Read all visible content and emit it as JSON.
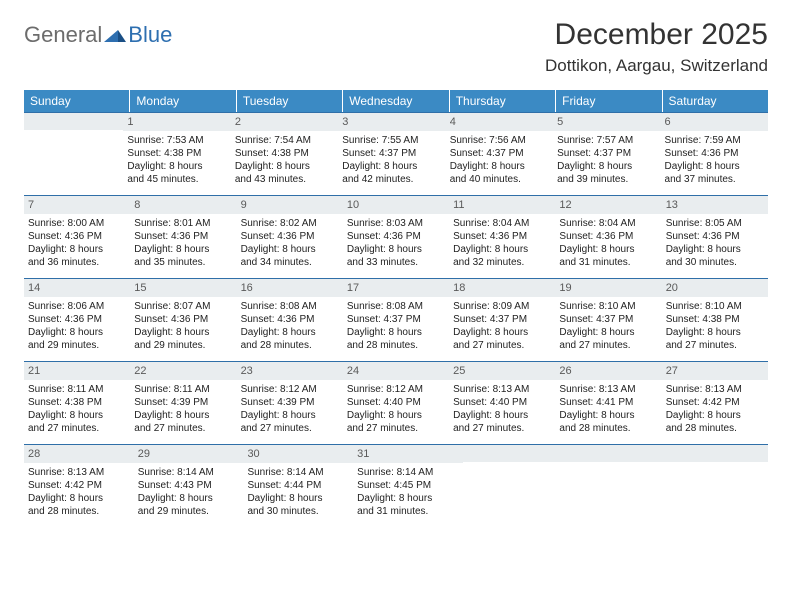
{
  "logo": {
    "text1": "General",
    "text2": "Blue"
  },
  "title": "December 2025",
  "location": "Dottikon, Aargau, Switzerland",
  "colors": {
    "header_bg": "#3b8ac4",
    "header_fg": "#ffffff",
    "daynum_bg": "#e9edef",
    "daynum_fg": "#5a5a5a",
    "rule": "#2f6fa8",
    "title_fg": "#333333",
    "body_fg": "#222222",
    "logo_gray": "#6c6c6c",
    "logo_blue": "#2e6fb0"
  },
  "weekdays": [
    "Sunday",
    "Monday",
    "Tuesday",
    "Wednesday",
    "Thursday",
    "Friday",
    "Saturday"
  ],
  "weeks": [
    [
      null,
      {
        "n": "1",
        "sr": "Sunrise: 7:53 AM",
        "ss": "Sunset: 4:38 PM",
        "d1": "Daylight: 8 hours",
        "d2": "and 45 minutes."
      },
      {
        "n": "2",
        "sr": "Sunrise: 7:54 AM",
        "ss": "Sunset: 4:38 PM",
        "d1": "Daylight: 8 hours",
        "d2": "and 43 minutes."
      },
      {
        "n": "3",
        "sr": "Sunrise: 7:55 AM",
        "ss": "Sunset: 4:37 PM",
        "d1": "Daylight: 8 hours",
        "d2": "and 42 minutes."
      },
      {
        "n": "4",
        "sr": "Sunrise: 7:56 AM",
        "ss": "Sunset: 4:37 PM",
        "d1": "Daylight: 8 hours",
        "d2": "and 40 minutes."
      },
      {
        "n": "5",
        "sr": "Sunrise: 7:57 AM",
        "ss": "Sunset: 4:37 PM",
        "d1": "Daylight: 8 hours",
        "d2": "and 39 minutes."
      },
      {
        "n": "6",
        "sr": "Sunrise: 7:59 AM",
        "ss": "Sunset: 4:36 PM",
        "d1": "Daylight: 8 hours",
        "d2": "and 37 minutes."
      }
    ],
    [
      {
        "n": "7",
        "sr": "Sunrise: 8:00 AM",
        "ss": "Sunset: 4:36 PM",
        "d1": "Daylight: 8 hours",
        "d2": "and 36 minutes."
      },
      {
        "n": "8",
        "sr": "Sunrise: 8:01 AM",
        "ss": "Sunset: 4:36 PM",
        "d1": "Daylight: 8 hours",
        "d2": "and 35 minutes."
      },
      {
        "n": "9",
        "sr": "Sunrise: 8:02 AM",
        "ss": "Sunset: 4:36 PM",
        "d1": "Daylight: 8 hours",
        "d2": "and 34 minutes."
      },
      {
        "n": "10",
        "sr": "Sunrise: 8:03 AM",
        "ss": "Sunset: 4:36 PM",
        "d1": "Daylight: 8 hours",
        "d2": "and 33 minutes."
      },
      {
        "n": "11",
        "sr": "Sunrise: 8:04 AM",
        "ss": "Sunset: 4:36 PM",
        "d1": "Daylight: 8 hours",
        "d2": "and 32 minutes."
      },
      {
        "n": "12",
        "sr": "Sunrise: 8:04 AM",
        "ss": "Sunset: 4:36 PM",
        "d1": "Daylight: 8 hours",
        "d2": "and 31 minutes."
      },
      {
        "n": "13",
        "sr": "Sunrise: 8:05 AM",
        "ss": "Sunset: 4:36 PM",
        "d1": "Daylight: 8 hours",
        "d2": "and 30 minutes."
      }
    ],
    [
      {
        "n": "14",
        "sr": "Sunrise: 8:06 AM",
        "ss": "Sunset: 4:36 PM",
        "d1": "Daylight: 8 hours",
        "d2": "and 29 minutes."
      },
      {
        "n": "15",
        "sr": "Sunrise: 8:07 AM",
        "ss": "Sunset: 4:36 PM",
        "d1": "Daylight: 8 hours",
        "d2": "and 29 minutes."
      },
      {
        "n": "16",
        "sr": "Sunrise: 8:08 AM",
        "ss": "Sunset: 4:36 PM",
        "d1": "Daylight: 8 hours",
        "d2": "and 28 minutes."
      },
      {
        "n": "17",
        "sr": "Sunrise: 8:08 AM",
        "ss": "Sunset: 4:37 PM",
        "d1": "Daylight: 8 hours",
        "d2": "and 28 minutes."
      },
      {
        "n": "18",
        "sr": "Sunrise: 8:09 AM",
        "ss": "Sunset: 4:37 PM",
        "d1": "Daylight: 8 hours",
        "d2": "and 27 minutes."
      },
      {
        "n": "19",
        "sr": "Sunrise: 8:10 AM",
        "ss": "Sunset: 4:37 PM",
        "d1": "Daylight: 8 hours",
        "d2": "and 27 minutes."
      },
      {
        "n": "20",
        "sr": "Sunrise: 8:10 AM",
        "ss": "Sunset: 4:38 PM",
        "d1": "Daylight: 8 hours",
        "d2": "and 27 minutes."
      }
    ],
    [
      {
        "n": "21",
        "sr": "Sunrise: 8:11 AM",
        "ss": "Sunset: 4:38 PM",
        "d1": "Daylight: 8 hours",
        "d2": "and 27 minutes."
      },
      {
        "n": "22",
        "sr": "Sunrise: 8:11 AM",
        "ss": "Sunset: 4:39 PM",
        "d1": "Daylight: 8 hours",
        "d2": "and 27 minutes."
      },
      {
        "n": "23",
        "sr": "Sunrise: 8:12 AM",
        "ss": "Sunset: 4:39 PM",
        "d1": "Daylight: 8 hours",
        "d2": "and 27 minutes."
      },
      {
        "n": "24",
        "sr": "Sunrise: 8:12 AM",
        "ss": "Sunset: 4:40 PM",
        "d1": "Daylight: 8 hours",
        "d2": "and 27 minutes."
      },
      {
        "n": "25",
        "sr": "Sunrise: 8:13 AM",
        "ss": "Sunset: 4:40 PM",
        "d1": "Daylight: 8 hours",
        "d2": "and 27 minutes."
      },
      {
        "n": "26",
        "sr": "Sunrise: 8:13 AM",
        "ss": "Sunset: 4:41 PM",
        "d1": "Daylight: 8 hours",
        "d2": "and 28 minutes."
      },
      {
        "n": "27",
        "sr": "Sunrise: 8:13 AM",
        "ss": "Sunset: 4:42 PM",
        "d1": "Daylight: 8 hours",
        "d2": "and 28 minutes."
      }
    ],
    [
      {
        "n": "28",
        "sr": "Sunrise: 8:13 AM",
        "ss": "Sunset: 4:42 PM",
        "d1": "Daylight: 8 hours",
        "d2": "and 28 minutes."
      },
      {
        "n": "29",
        "sr": "Sunrise: 8:14 AM",
        "ss": "Sunset: 4:43 PM",
        "d1": "Daylight: 8 hours",
        "d2": "and 29 minutes."
      },
      {
        "n": "30",
        "sr": "Sunrise: 8:14 AM",
        "ss": "Sunset: 4:44 PM",
        "d1": "Daylight: 8 hours",
        "d2": "and 30 minutes."
      },
      {
        "n": "31",
        "sr": "Sunrise: 8:14 AM",
        "ss": "Sunset: 4:45 PM",
        "d1": "Daylight: 8 hours",
        "d2": "and 31 minutes."
      },
      null,
      null,
      null
    ]
  ]
}
